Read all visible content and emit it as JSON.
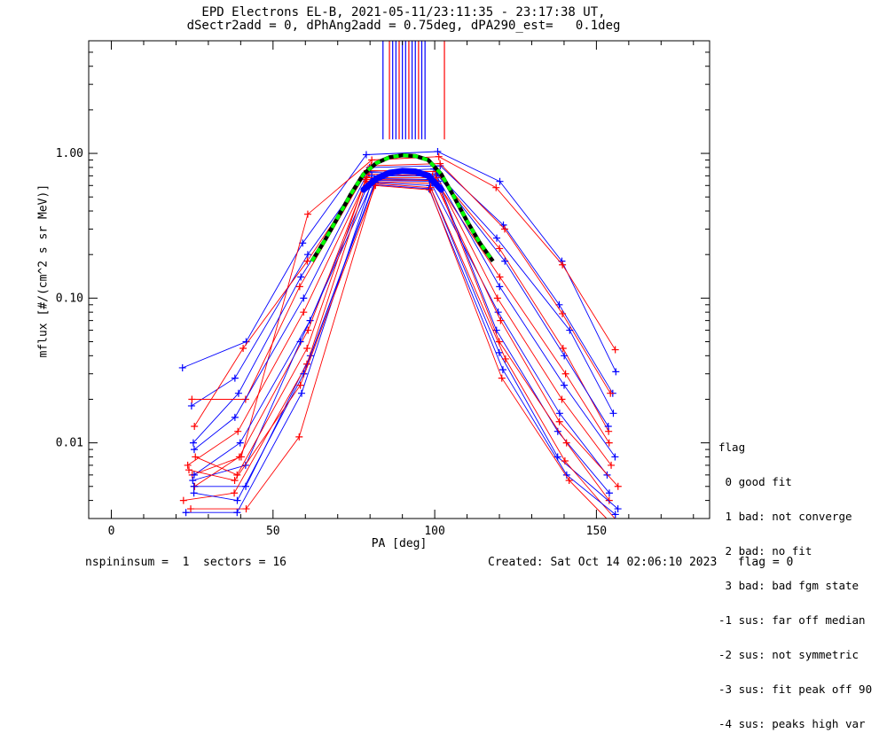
{
  "figure": {
    "title_line1": "EPD Electrons EL-B, 2021-05-11/23:11:35 - 23:17:38 UT,",
    "title_line2": "dSectr2add = 0, dPhAng2add = 0.75deg, dPA290_est=   0.1deg",
    "footer_left": "nspininsum =  1  sectors = 16",
    "footer_right": "Created: Sat Oct 14 02:06:10 2023   flag = 0"
  },
  "flag_legend": {
    "title": "flag",
    "items": [
      " 0 good fit",
      " 1 bad: not converge",
      " 2 bad: no fit",
      " 3 bad: bad fgm state",
      "-1 sus: far off median",
      "-2 sus: not symmetric",
      "-3 sus: fit peak off 90",
      "-4 sus: peaks high var"
    ]
  },
  "colors": {
    "series_a": "#0000ff",
    "series_b": "#ff0000",
    "fit_dash": "#00ff00",
    "fit_under": "#000000"
  },
  "chart_data": {
    "type": "line",
    "xlabel": "PA [deg]",
    "ylabel": "mflux [#/(cm^2 s sr MeV)]",
    "xlim": [
      -7,
      185
    ],
    "ylim": [
      0.003,
      6.0
    ],
    "yscale": "log",
    "xticks": [
      0,
      50,
      100,
      150
    ],
    "xtick_labels": [
      "0",
      "50",
      "100",
      "150"
    ],
    "yticks": [
      0.01,
      0.1,
      1.0
    ],
    "ytick_labels": [
      "0.01",
      "0.10",
      "1.00"
    ],
    "pa_points": [
      24,
      40,
      60,
      80,
      100,
      120,
      140,
      155
    ],
    "series": [
      {
        "color": "blue",
        "values": [
          0.033,
          0.05,
          0.24,
          0.98,
          1.03,
          0.64,
          0.18,
          0.031
        ]
      },
      {
        "color": "red",
        "values": [
          0.006,
          0.008,
          0.38,
          0.9,
          0.95,
          0.58,
          0.17,
          0.044
        ]
      },
      {
        "color": "blue",
        "values": [
          0.018,
          0.028,
          0.2,
          0.8,
          0.82,
          0.32,
          0.09,
          0.022
        ]
      },
      {
        "color": "red",
        "values": [
          0.013,
          0.045,
          0.18,
          0.82,
          0.85,
          0.3,
          0.078,
          0.022
        ]
      },
      {
        "color": "blue",
        "values": [
          0.01,
          0.022,
          0.14,
          0.75,
          0.78,
          0.26,
          0.06,
          0.016
        ]
      },
      {
        "color": "red",
        "values": [
          0.02,
          0.02,
          0.12,
          0.76,
          0.75,
          0.22,
          0.045,
          0.012
        ]
      },
      {
        "color": "blue",
        "values": [
          0.009,
          0.015,
          0.1,
          0.74,
          0.72,
          0.18,
          0.04,
          0.013
        ]
      },
      {
        "color": "red",
        "values": [
          0.007,
          0.012,
          0.08,
          0.72,
          0.7,
          0.14,
          0.03,
          0.01
        ]
      },
      {
        "color": "blue",
        "values": [
          0.006,
          0.01,
          0.07,
          0.7,
          0.7,
          0.12,
          0.025,
          0.008
        ]
      },
      {
        "color": "red",
        "values": [
          0.005,
          0.008,
          0.06,
          0.68,
          0.68,
          0.1,
          0.02,
          0.007
        ]
      },
      {
        "color": "blue",
        "values": [
          0.0055,
          0.007,
          0.05,
          0.67,
          0.66,
          0.08,
          0.016,
          0.006
        ]
      },
      {
        "color": "red",
        "values": [
          0.008,
          0.006,
          0.045,
          0.66,
          0.65,
          0.07,
          0.014,
          0.005
        ]
      },
      {
        "color": "blue",
        "values": [
          0.005,
          0.005,
          0.04,
          0.65,
          0.64,
          0.06,
          0.012,
          0.0045
        ]
      },
      {
        "color": "red",
        "values": [
          0.004,
          0.0045,
          0.035,
          0.64,
          0.62,
          0.05,
          0.01,
          0.004
        ]
      },
      {
        "color": "blue",
        "values": [
          0.0045,
          0.004,
          0.03,
          0.63,
          0.6,
          0.042,
          0.008,
          0.0035
        ]
      },
      {
        "color": "red",
        "values": [
          0.0035,
          0.0035,
          0.011,
          0.62,
          0.58,
          0.038,
          0.0075,
          0.003
        ]
      },
      {
        "color": "blue",
        "values": [
          0.0033,
          0.0033,
          0.022,
          0.61,
          0.57,
          0.032,
          0.006,
          0.0032
        ]
      },
      {
        "color": "red",
        "values": [
          0.0065,
          0.0055,
          0.025,
          0.6,
          0.56,
          0.028,
          0.0055,
          0.0028
        ]
      }
    ],
    "fit_curve": {
      "x": [
        62,
        66,
        70,
        74,
        78,
        82,
        86,
        90,
        94,
        98,
        102,
        106,
        110,
        114,
        118
      ],
      "y": [
        0.18,
        0.25,
        0.36,
        0.52,
        0.72,
        0.86,
        0.94,
        0.97,
        0.96,
        0.9,
        0.72,
        0.5,
        0.34,
        0.24,
        0.18
      ]
    },
    "beam_x": [
      84,
      86,
      87,
      88,
      89,
      90,
      91,
      92,
      93,
      94,
      95,
      96,
      97,
      103
    ]
  }
}
